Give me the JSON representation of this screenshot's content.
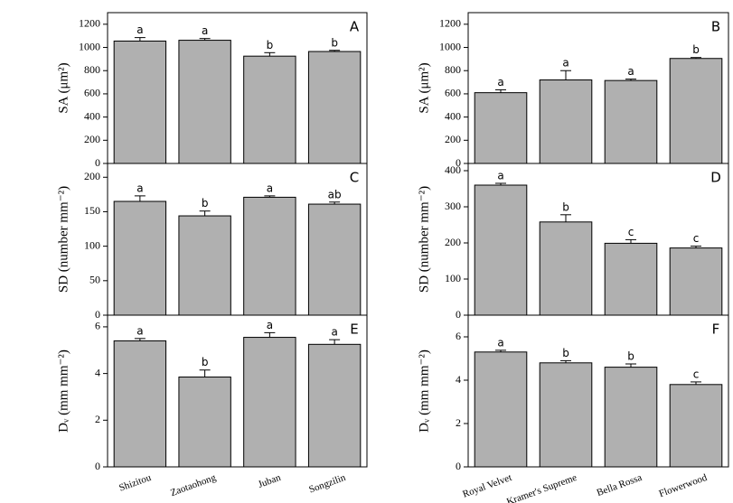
{
  "chart_data": [
    {
      "type": "bar",
      "panel_label": "A",
      "y_label": "SA (μm²)",
      "categories": [
        null,
        null,
        null,
        null
      ],
      "values": [
        1055,
        1062,
        925,
        965
      ],
      "errors": [
        30,
        15,
        30,
        10
      ],
      "annotations": [
        "a",
        "a",
        "b",
        "b"
      ],
      "ylim": [
        0,
        1300
      ],
      "yticks": [
        0,
        200,
        400,
        600,
        800,
        1000,
        1200
      ],
      "color": "#b0b0b0"
    },
    {
      "type": "bar",
      "panel_label": "B",
      "y_label": "SA (μm²)",
      "categories": [
        null,
        null,
        null,
        null
      ],
      "values": [
        610,
        720,
        715,
        905
      ],
      "errors": [
        25,
        80,
        12,
        8
      ],
      "annotations": [
        "a",
        "a",
        "a",
        "b"
      ],
      "ylim": [
        0,
        1300
      ],
      "yticks": [
        0,
        200,
        400,
        600,
        800,
        1000,
        1200
      ],
      "color": "#b0b0b0"
    },
    {
      "type": "bar",
      "panel_label": "C",
      "y_label": "SD (number mm⁻²)",
      "categories": [
        null,
        null,
        null,
        null
      ],
      "values": [
        165,
        144,
        171,
        161
      ],
      "errors": [
        8,
        7,
        2,
        3
      ],
      "annotations": [
        "a",
        "b",
        "a",
        "ab"
      ],
      "ylim": [
        0,
        220
      ],
      "yticks": [
        0,
        50,
        100,
        150,
        200
      ],
      "color": "#b0b0b0"
    },
    {
      "type": "bar",
      "panel_label": "D",
      "y_label": "SD (number mm⁻²)",
      "categories": [
        null,
        null,
        null,
        null
      ],
      "values": [
        360,
        258,
        199,
        186
      ],
      "errors": [
        5,
        20,
        10,
        5
      ],
      "annotations": [
        "a",
        "b",
        "c",
        "c"
      ],
      "ylim": [
        0,
        420
      ],
      "yticks": [
        0,
        100,
        200,
        300,
        400
      ],
      "color": "#b0b0b0"
    },
    {
      "type": "bar",
      "panel_label": "E",
      "y_label": "Dᵥ (mm mm⁻²)",
      "categories": [
        "Shizitou",
        "Zaotaohong",
        "Juban",
        "Songzilin"
      ],
      "values": [
        5.4,
        3.85,
        5.55,
        5.25
      ],
      "errors": [
        0.1,
        0.3,
        0.2,
        0.2
      ],
      "annotations": [
        "a",
        "b",
        "a",
        "a"
      ],
      "ylim": [
        0,
        6.5
      ],
      "yticks": [
        0,
        2,
        4,
        6
      ],
      "color": "#b0b0b0"
    },
    {
      "type": "bar",
      "panel_label": "F",
      "y_label": "Dᵥ (mm mm⁻²)",
      "categories": [
        "Royal Velvet",
        "Kramer's Supreme",
        "Bella Rossa",
        "Flowerwood"
      ],
      "values": [
        5.3,
        4.8,
        4.6,
        3.8
      ],
      "errors": [
        0.08,
        0.1,
        0.15,
        0.12
      ],
      "annotations": [
        "a",
        "b",
        "b",
        "c"
      ],
      "ylim": [
        0,
        7
      ],
      "yticks": [
        0,
        2,
        4,
        6
      ],
      "color": "#b0b0b0"
    }
  ]
}
